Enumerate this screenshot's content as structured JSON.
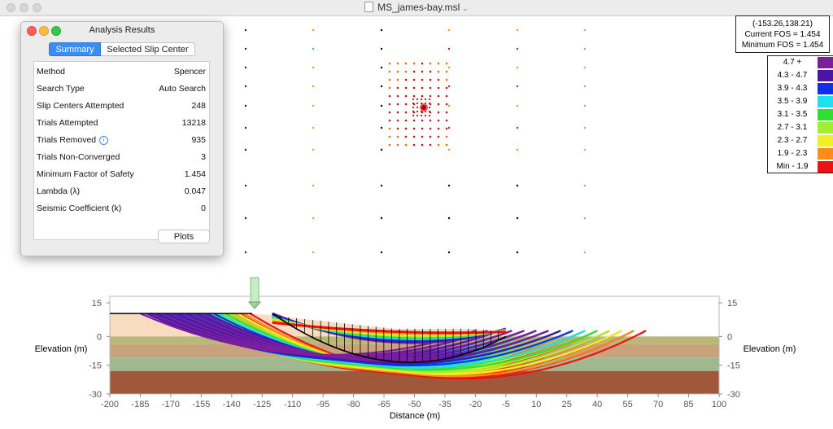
{
  "window": {
    "title": "MS_james-bay.msl"
  },
  "coord_box": {
    "coords": "(-153.26,138.21)",
    "current_fos": "Current FOS = 1.454",
    "minimum_fos": "Minimum FOS = 1.454"
  },
  "legend": {
    "items": [
      {
        "label": "4.7 +",
        "color": "#7a1f9e"
      },
      {
        "label": "4.3 - 4.7",
        "color": "#4b14a8"
      },
      {
        "label": "3.9 - 4.3",
        "color": "#1030e8"
      },
      {
        "label": "3.5 - 3.9",
        "color": "#20e0f0"
      },
      {
        "label": "3.1 - 3.5",
        "color": "#30e030"
      },
      {
        "label": "2.7 - 3.1",
        "color": "#a0f030"
      },
      {
        "label": "2.3 - 2.7",
        "color": "#f0f020"
      },
      {
        "label": "1.9 - 2.3",
        "color": "#ff8c1a"
      },
      {
        "label": "Min - 1.9",
        "color": "#ee1111"
      }
    ]
  },
  "panel": {
    "title": "Analysis Results",
    "tabs": [
      "Summary",
      "Selected Slip Center"
    ],
    "rows": [
      {
        "label": "Method",
        "value": "Spencer"
      },
      {
        "label": "Search Type",
        "value": "Auto Search"
      },
      {
        "label": "Slip Centers Attempted",
        "value": "248"
      },
      {
        "label": "Trials Attempted",
        "value": "13218"
      },
      {
        "label": "Trials Removed",
        "value": "935"
      },
      {
        "label": "Trials Non-Converged",
        "value": "3"
      },
      {
        "label": "Minimum Factor of Safety",
        "value": "1.454"
      },
      {
        "label": "Lambda (λ)",
        "value": "0.047"
      },
      {
        "label": "Seismic Coefficient (k)",
        "value": "0"
      }
    ],
    "plots_button": "Plots"
  },
  "axes": {
    "x_title": "Distance (m)",
    "y_title_left": "Elevation (m)",
    "y_title_right": "Elevation (m)",
    "x_ticks": [
      -200,
      -185,
      -170,
      -155,
      -140,
      -125,
      -110,
      -95,
      -80,
      -65,
      -50,
      -35,
      -20,
      -5,
      10,
      25,
      40,
      55,
      70,
      85,
      100
    ],
    "y_ticks": [
      15,
      0,
      -15,
      -30
    ]
  },
  "colors": {
    "fill_light": "#f7dcc0",
    "layer_tan": "#c8a27a",
    "layer_olive": "#b8b878",
    "layer_green": "#a0b890",
    "layer_brown": "#a0583a"
  }
}
